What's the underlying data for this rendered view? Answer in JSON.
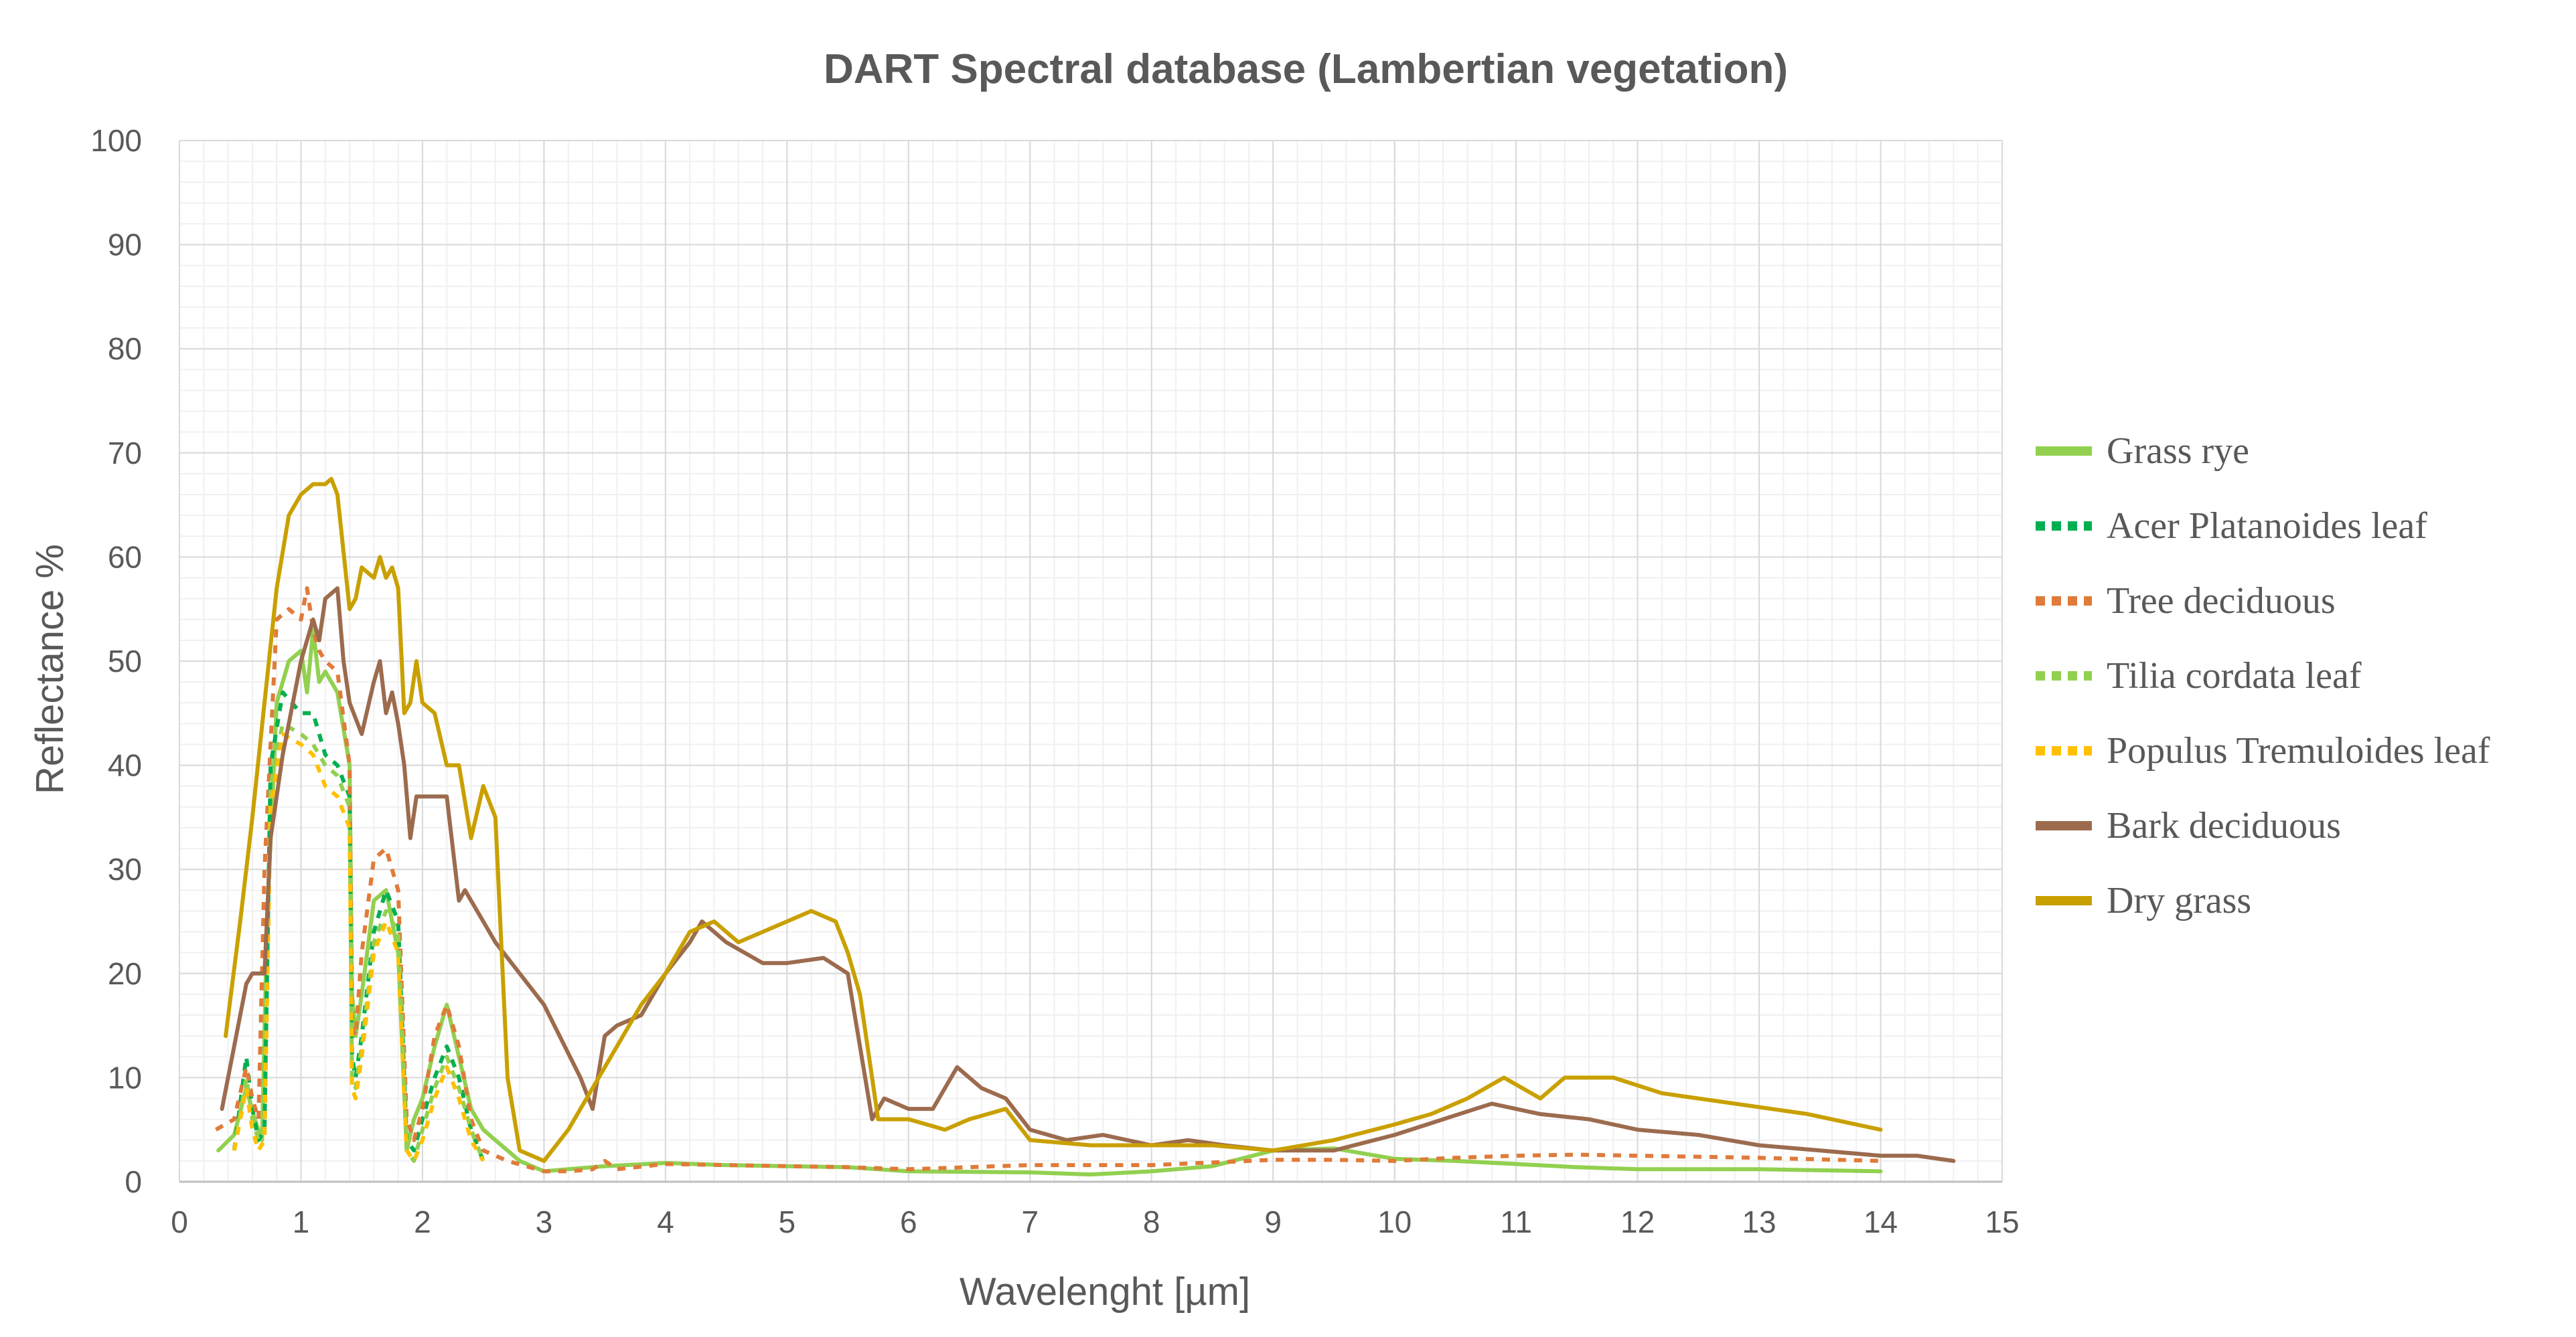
{
  "chart_data": {
    "type": "line",
    "title": "DART Spectral database (Lambertian vegetation)",
    "xlabel": "Wavelenght [µm]",
    "ylabel": "Reflectance  %",
    "xlim": [
      0,
      15
    ],
    "ylim": [
      0,
      100
    ],
    "xticks": [
      "0",
      "1",
      "2",
      "3",
      "4",
      "5",
      "6",
      "7",
      "8",
      "9",
      "10",
      "11",
      "12",
      "13",
      "14",
      "15"
    ],
    "yticks": [
      "0",
      "10",
      "20",
      "30",
      "40",
      "50",
      "60",
      "70",
      "80",
      "90",
      "100"
    ],
    "grid": true,
    "legend_position": "right",
    "series": [
      {
        "name": "Grass rye",
        "color": "#92D050",
        "dash": "solid",
        "x": [
          0.32,
          0.45,
          0.55,
          0.62,
          0.68,
          0.72,
          0.8,
          0.9,
          1.0,
          1.05,
          1.1,
          1.15,
          1.2,
          1.3,
          1.4,
          1.42,
          1.45,
          1.5,
          1.6,
          1.7,
          1.8,
          1.87,
          1.93,
          2.0,
          2.1,
          2.2,
          2.3,
          2.4,
          2.5,
          2.6,
          2.7,
          2.8,
          3.0,
          3.2,
          3.5,
          4.0,
          4.5,
          5.0,
          5.5,
          6.0,
          7.0,
          7.5,
          8.0,
          8.5,
          9.0,
          9.5,
          10.0,
          10.5,
          11.0,
          11.5,
          12.0,
          13.0,
          14.0
        ],
        "y": [
          3,
          4.5,
          9,
          6,
          4,
          25,
          46,
          50,
          51,
          47,
          53,
          48,
          49,
          47,
          40,
          18,
          14,
          18,
          27,
          28,
          22,
          3,
          6,
          8,
          13,
          17,
          12,
          7,
          5,
          4,
          3,
          2,
          1,
          1.2,
          1.5,
          1.8,
          1.6,
          1.5,
          1.4,
          1.0,
          0.9,
          0.7,
          1.0,
          1.5,
          3,
          3.2,
          2.2,
          2.0,
          1.7,
          1.4,
          1.2,
          1.2,
          1.0
        ]
      },
      {
        "name": "Acer Platanoides leaf",
        "color": "#00B050",
        "dash": "dotted",
        "x": [
          0.45,
          0.55,
          0.6,
          0.65,
          0.7,
          0.75,
          0.85,
          1.0,
          1.1,
          1.2,
          1.3,
          1.4,
          1.42,
          1.45,
          1.5,
          1.6,
          1.7,
          1.8,
          1.87,
          1.93,
          2.0,
          2.1,
          2.2,
          2.3,
          2.4,
          2.5
        ],
        "y": [
          3,
          12,
          7,
          4,
          5,
          40,
          47,
          45,
          45,
          41,
          40,
          37,
          12,
          10,
          14,
          24,
          28,
          25,
          4,
          3,
          6,
          10,
          13,
          10,
          5,
          2
        ]
      },
      {
        "name": "Tree deciduous",
        "color": "#E07B39",
        "dash": "dotted",
        "x": [
          0.3,
          0.45,
          0.55,
          0.6,
          0.65,
          0.7,
          0.8,
          0.9,
          1.0,
          1.05,
          1.1,
          1.15,
          1.2,
          1.3,
          1.4,
          1.42,
          1.45,
          1.5,
          1.6,
          1.7,
          1.8,
          1.87,
          1.93,
          2.0,
          2.1,
          2.2,
          2.3,
          2.4,
          2.5,
          2.7,
          3.0,
          3.2,
          3.4,
          3.5,
          3.6,
          4.0,
          4.5,
          5.0,
          5.5,
          6.0,
          7.0,
          8.0,
          9.0,
          9.5,
          10.0,
          10.5,
          11.0,
          11.5,
          12.0,
          13.0,
          14.0
        ],
        "y": [
          5,
          6,
          11,
          8,
          6,
          30,
          54,
          55,
          54,
          57,
          53,
          51,
          50,
          49,
          40,
          15,
          14,
          22,
          31,
          32,
          28,
          6,
          4,
          7,
          14,
          17,
          13,
          6,
          3,
          2,
          1,
          1,
          1.2,
          2,
          1.2,
          1.7,
          1.6,
          1.5,
          1.4,
          1.2,
          1.6,
          1.6,
          2.1,
          2.1,
          2,
          2.3,
          2.5,
          2.6,
          2.5,
          2.3,
          2.0
        ]
      },
      {
        "name": "Tilia cordata leaf",
        "color": "#92D050",
        "dash": "dotted",
        "x": [
          0.45,
          0.55,
          0.6,
          0.65,
          0.7,
          0.75,
          0.85,
          1.0,
          1.1,
          1.2,
          1.3,
          1.4,
          1.42,
          1.45,
          1.5,
          1.6,
          1.7,
          1.8,
          1.87,
          1.93,
          2.0,
          2.1,
          2.2,
          2.3,
          2.4,
          2.5
        ],
        "y": [
          3,
          10,
          6,
          4,
          5,
          38,
          44,
          43,
          42,
          40,
          39,
          36,
          10,
          9,
          13,
          23,
          26,
          24,
          3,
          2,
          5,
          9,
          12,
          9,
          5,
          2
        ]
      },
      {
        "name": "Populus Tremuloides leaf",
        "color": "#FFC000",
        "dash": "dotted",
        "x": [
          0.45,
          0.55,
          0.6,
          0.65,
          0.7,
          0.75,
          0.85,
          1.0,
          1.1,
          1.2,
          1.3,
          1.4,
          1.42,
          1.45,
          1.5,
          1.6,
          1.7,
          1.8,
          1.87,
          1.93,
          2.0,
          2.1,
          2.2,
          2.3,
          2.4,
          2.5
        ],
        "y": [
          3,
          9,
          5,
          3,
          4,
          36,
          43,
          42,
          41,
          38,
          37,
          34,
          9,
          8,
          12,
          22,
          25,
          22,
          3,
          2,
          4,
          8,
          11,
          8,
          4,
          2
        ]
      },
      {
        "name": "Bark deciduous",
        "color": "#9C6B4E",
        "dash": "solid",
        "x": [
          0.35,
          0.45,
          0.55,
          0.6,
          0.7,
          0.75,
          0.85,
          1.0,
          1.1,
          1.15,
          1.2,
          1.3,
          1.35,
          1.4,
          1.5,
          1.6,
          1.65,
          1.7,
          1.75,
          1.8,
          1.85,
          1.9,
          1.95,
          2.0,
          2.1,
          2.2,
          2.3,
          2.35,
          2.4,
          2.5,
          2.6,
          3.0,
          3.3,
          3.4,
          3.5,
          3.6,
          3.8,
          4.0,
          4.2,
          4.3,
          4.5,
          4.8,
          5.0,
          5.3,
          5.5,
          5.7,
          5.8,
          6.0,
          6.2,
          6.4,
          6.6,
          6.8,
          7.0,
          7.3,
          7.6,
          8.0,
          8.3,
          8.6,
          9.0,
          9.5,
          10.0,
          10.4,
          10.8,
          11.2,
          11.6,
          12.0,
          12.5,
          13.0,
          13.5,
          14.0,
          14.3,
          14.6
        ],
        "y": [
          7,
          13,
          19,
          20,
          20,
          33,
          41,
          50,
          54,
          52,
          56,
          57,
          50,
          46,
          43,
          48,
          50,
          45,
          47,
          44,
          40,
          33,
          37,
          37,
          37,
          37,
          27,
          28,
          27,
          25,
          23,
          17,
          10,
          7,
          14,
          15,
          16,
          20,
          23,
          25,
          23,
          21,
          21,
          21.5,
          20,
          6,
          8,
          7,
          7,
          11,
          9,
          8,
          5,
          4,
          4.5,
          3.5,
          4,
          3.5,
          3,
          3,
          4.5,
          6,
          7.5,
          6.5,
          6,
          5,
          4.5,
          3.5,
          3,
          2.5,
          2.5,
          2
        ]
      },
      {
        "name": "Dry grass",
        "color": "#C9A000",
        "dash": "solid",
        "x": [
          0.38,
          0.5,
          0.6,
          0.7,
          0.8,
          0.9,
          1.0,
          1.1,
          1.2,
          1.25,
          1.3,
          1.4,
          1.45,
          1.5,
          1.6,
          1.65,
          1.7,
          1.75,
          1.8,
          1.85,
          1.9,
          1.95,
          2.0,
          2.1,
          2.2,
          2.3,
          2.4,
          2.5,
          2.6,
          2.7,
          2.8,
          3.0,
          3.2,
          3.4,
          3.6,
          3.8,
          4.0,
          4.2,
          4.4,
          4.6,
          4.8,
          5.0,
          5.2,
          5.4,
          5.5,
          5.6,
          5.75,
          6.0,
          6.3,
          6.5,
          6.8,
          7.0,
          7.5,
          8.0,
          8.5,
          9.0,
          9.5,
          10.0,
          10.3,
          10.6,
          10.9,
          11.2,
          11.4,
          11.8,
          12.2,
          12.8,
          13.4,
          14.0
        ],
        "y": [
          14,
          25,
          35,
          46,
          57,
          64,
          66,
          67,
          67,
          67.5,
          66,
          55,
          56,
          59,
          58,
          60,
          58,
          59,
          57,
          45,
          46,
          50,
          46,
          45,
          40,
          40,
          33,
          38,
          35,
          10,
          3,
          2,
          5,
          9,
          13,
          17,
          20,
          24,
          25,
          23,
          24,
          25,
          26,
          25,
          22,
          18,
          6,
          6,
          5,
          6,
          7,
          4,
          3.5,
          3.5,
          3.5,
          3,
          4,
          5.5,
          6.5,
          8,
          10,
          8,
          10,
          10,
          8.5,
          7.5,
          6.5,
          5
        ]
      }
    ]
  }
}
